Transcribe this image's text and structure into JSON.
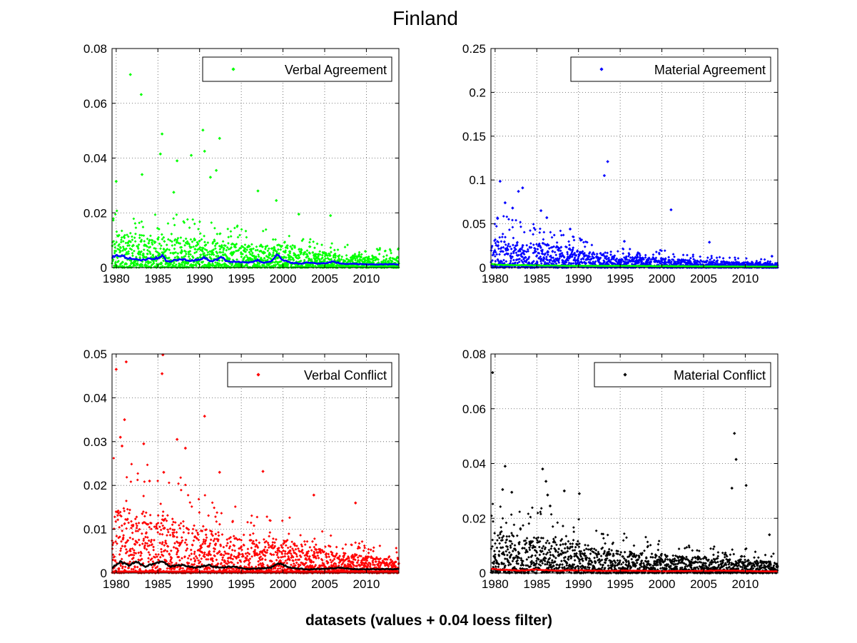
{
  "figure": {
    "title": "Finland",
    "xlabel": "datasets (values + 0.04 loess filter)"
  },
  "chart_data": [
    {
      "type": "scatter",
      "legend": "Verbal Agreement",
      "legend_placement": "top-right",
      "grid": true,
      "xlim": [
        1979.5,
        2013.9
      ],
      "ylim": [
        0,
        0.08
      ],
      "xticks": [
        1980,
        1985,
        1990,
        1995,
        2000,
        2005,
        2010
      ],
      "xtick_labels": [
        "1980",
        "1985",
        "1990",
        "1995",
        "2000",
        "2005",
        "2010"
      ],
      "yticks": [
        0,
        0.02,
        0.04,
        0.06,
        0.08
      ],
      "ytick_labels": [
        "0",
        "0.02",
        "0.04",
        "0.06",
        "0.08"
      ],
      "point_color": "#00ff00",
      "trend_color": "#0000ff",
      "baseline_color": null,
      "outliers": [
        [
          1981.7,
          0.0705
        ],
        [
          1983.0,
          0.0632
        ],
        [
          1985.5,
          0.0488
        ],
        [
          1985.3,
          0.0415
        ],
        [
          1987.3,
          0.039
        ],
        [
          1989.0,
          0.041
        ],
        [
          1990.4,
          0.0502
        ],
        [
          1990.6,
          0.0425
        ],
        [
          1991.3,
          0.033
        ],
        [
          1992.4,
          0.0472
        ],
        [
          1992.0,
          0.0355
        ],
        [
          1983.1,
          0.034
        ],
        [
          1997.0,
          0.028
        ],
        [
          1999.2,
          0.0245
        ],
        [
          1980.0,
          0.0315
        ],
        [
          1986.9,
          0.0275
        ],
        [
          2005.7,
          0.019
        ],
        [
          2001.9,
          0.0195
        ]
      ],
      "density": [
        [
          1979.5,
          0.014
        ],
        [
          1983,
          0.012
        ],
        [
          1986,
          0.011
        ],
        [
          1990,
          0.0105
        ],
        [
          1993,
          0.009
        ],
        [
          1997,
          0.008
        ],
        [
          2000,
          0.0085
        ],
        [
          2003,
          0.0065
        ],
        [
          2006,
          0.005
        ],
        [
          2010,
          0.0045
        ],
        [
          2013.9,
          0.004
        ]
      ],
      "trend": [
        [
          1979.5,
          0.0035
        ],
        [
          1980,
          0.0048
        ],
        [
          1981,
          0.004
        ],
        [
          1982,
          0.003
        ],
        [
          1983,
          0.0028
        ],
        [
          1984,
          0.0032
        ],
        [
          1985,
          0.0035
        ],
        [
          1985.5,
          0.0045
        ],
        [
          1986,
          0.0025
        ],
        [
          1986.5,
          0.002
        ],
        [
          1987,
          0.0028
        ],
        [
          1988,
          0.003
        ],
        [
          1989,
          0.0025
        ],
        [
          1990,
          0.003
        ],
        [
          1990.6,
          0.0038
        ],
        [
          1991.2,
          0.0022
        ],
        [
          1992,
          0.0028
        ],
        [
          1992.6,
          0.0038
        ],
        [
          1993.3,
          0.0022
        ],
        [
          1994,
          0.0022
        ],
        [
          1995,
          0.002
        ],
        [
          1996,
          0.0018
        ],
        [
          1997,
          0.0028
        ],
        [
          1997.6,
          0.0018
        ],
        [
          1998.5,
          0.0022
        ],
        [
          1999.3,
          0.0045
        ],
        [
          2000,
          0.0028
        ],
        [
          2001,
          0.0018
        ],
        [
          2002,
          0.0015
        ],
        [
          2003,
          0.0018
        ],
        [
          2004,
          0.0015
        ],
        [
          2005,
          0.0016
        ],
        [
          2006,
          0.0022
        ],
        [
          2007,
          0.0015
        ],
        [
          2008,
          0.0014
        ],
        [
          2009,
          0.0013
        ],
        [
          2011,
          0.0012
        ],
        [
          2013.9,
          0.0012
        ]
      ],
      "seed": 11
    },
    {
      "type": "scatter",
      "legend": "Material Agreement",
      "legend_placement": "top-right",
      "grid": true,
      "xlim": [
        1979.5,
        2013.9
      ],
      "ylim": [
        0,
        0.25
      ],
      "xticks": [
        1980,
        1985,
        1990,
        1995,
        2000,
        2005,
        2010
      ],
      "xtick_labels": [
        "1980",
        "1985",
        "1990",
        "1995",
        "2000",
        "2005",
        "2010"
      ],
      "yticks": [
        0,
        0.05,
        0.1,
        0.15,
        0.2,
        0.25
      ],
      "ytick_labels": [
        "0",
        "0.05",
        "0.1",
        "0.15",
        "0.2",
        "0.25"
      ],
      "point_color": "#0000ff",
      "trend_color": "#00ff00",
      "baseline_color": null,
      "outliers": [
        [
          1980.6,
          0.0985
        ],
        [
          1981.2,
          0.074
        ],
        [
          1982.1,
          0.068
        ],
        [
          1982.8,
          0.087
        ],
        [
          1983.3,
          0.091
        ],
        [
          1980.3,
          0.056
        ],
        [
          1985.5,
          0.065
        ],
        [
          1986.2,
          0.057
        ],
        [
          1989.0,
          0.044
        ],
        [
          1993.1,
          0.105
        ],
        [
          1993.5,
          0.121
        ],
        [
          2001.1,
          0.066
        ],
        [
          1995.5,
          0.03
        ],
        [
          2005.7,
          0.029
        ],
        [
          2013.2,
          0.013
        ]
      ],
      "density": [
        [
          1979.5,
          0.035
        ],
        [
          1983,
          0.03
        ],
        [
          1986,
          0.028
        ],
        [
          1990,
          0.02
        ],
        [
          1993,
          0.016
        ],
        [
          1997,
          0.012
        ],
        [
          2000,
          0.011
        ],
        [
          2003,
          0.009
        ],
        [
          2006,
          0.008
        ],
        [
          2010,
          0.006
        ],
        [
          2013.9,
          0.005
        ]
      ],
      "trend": [
        [
          1979.5,
          0.004
        ],
        [
          1981,
          0.003
        ],
        [
          1985,
          0.0025
        ],
        [
          1990,
          0.002
        ],
        [
          1995,
          0.002
        ],
        [
          2000,
          0.0018
        ],
        [
          2005,
          0.0015
        ],
        [
          2010,
          0.0012
        ],
        [
          2013.9,
          0.001
        ]
      ],
      "seed": 23
    },
    {
      "type": "scatter",
      "legend": "Verbal Conflict",
      "legend_placement": "top-right",
      "grid": true,
      "xlim": [
        1979.5,
        2013.9
      ],
      "ylim": [
        0,
        0.05
      ],
      "xticks": [
        1980,
        1985,
        1990,
        1995,
        2000,
        2005,
        2010
      ],
      "xtick_labels": [
        "1980",
        "1985",
        "1990",
        "1995",
        "2000",
        "2005",
        "2010"
      ],
      "yticks": [
        0,
        0.01,
        0.02,
        0.03,
        0.04,
        0.05
      ],
      "ytick_labels": [
        "0",
        "0.01",
        "0.02",
        "0.03",
        "0.04",
        "0.05"
      ],
      "point_color": "#ff0000",
      "trend_color": "#000000",
      "baseline_color": "#ff0000",
      "outliers": [
        [
          1980.0,
          0.0465
        ],
        [
          1980.5,
          0.031
        ],
        [
          1981.2,
          0.0482
        ],
        [
          1981.0,
          0.035
        ],
        [
          1980.7,
          0.029
        ],
        [
          1983.3,
          0.0295
        ],
        [
          1985.6,
          0.0498
        ],
        [
          1985.5,
          0.0455
        ],
        [
          1987.3,
          0.0305
        ],
        [
          1988.3,
          0.0285
        ],
        [
          1990.6,
          0.0358
        ],
        [
          1992.4,
          0.023
        ],
        [
          1997.6,
          0.0232
        ],
        [
          2003.7,
          0.0178
        ],
        [
          2008.7,
          0.016
        ],
        [
          1985.7,
          0.023
        ],
        [
          1984.0,
          0.021
        ]
      ],
      "density": [
        [
          1979.5,
          0.016
        ],
        [
          1983,
          0.014
        ],
        [
          1986,
          0.013
        ],
        [
          1990,
          0.011
        ],
        [
          1993,
          0.009
        ],
        [
          1997,
          0.0075
        ],
        [
          2000,
          0.0075
        ],
        [
          2003,
          0.006
        ],
        [
          2006,
          0.005
        ],
        [
          2010,
          0.004
        ],
        [
          2013.9,
          0.0035
        ]
      ],
      "trend": [
        [
          1979.5,
          0.0012
        ],
        [
          1980.5,
          0.0025
        ],
        [
          1981.5,
          0.0018
        ],
        [
          1982.5,
          0.0025
        ],
        [
          1983.5,
          0.0015
        ],
        [
          1984.5,
          0.0022
        ],
        [
          1985.5,
          0.0028
        ],
        [
          1986.5,
          0.0015
        ],
        [
          1988,
          0.0018
        ],
        [
          1989.5,
          0.0012
        ],
        [
          1991,
          0.0018
        ],
        [
          1992.5,
          0.0012
        ],
        [
          1994,
          0.0015
        ],
        [
          1995.5,
          0.0009
        ],
        [
          1997,
          0.001
        ],
        [
          1998.5,
          0.0012
        ],
        [
          1999.5,
          0.0022
        ],
        [
          2001,
          0.0012
        ],
        [
          2003,
          0.0008
        ],
        [
          2005,
          0.001
        ],
        [
          2007,
          0.0012
        ],
        [
          2009,
          0.0008
        ],
        [
          2011,
          0.0009
        ],
        [
          2013.9,
          0.0009
        ]
      ],
      "seed": 37
    },
    {
      "type": "scatter",
      "legend": "Material Conflict",
      "legend_placement": "top-right",
      "grid": true,
      "xlim": [
        1979.5,
        2013.9
      ],
      "ylim": [
        0,
        0.08
      ],
      "xticks": [
        1980,
        1985,
        1990,
        1995,
        2000,
        2005,
        2010
      ],
      "xtick_labels": [
        "1980",
        "1985",
        "1990",
        "1995",
        "2000",
        "2005",
        "2010"
      ],
      "yticks": [
        0,
        0.02,
        0.04,
        0.06,
        0.08
      ],
      "ytick_labels": [
        "0",
        "0.02",
        "0.04",
        "0.06",
        "0.08"
      ],
      "point_color": "#000000",
      "trend_color": "#ff0000",
      "baseline_color": null,
      "outliers": [
        [
          1979.7,
          0.0732
        ],
        [
          1981.2,
          0.039
        ],
        [
          1980.9,
          0.0305
        ],
        [
          1982.0,
          0.0295
        ],
        [
          1985.7,
          0.038
        ],
        [
          1986.1,
          0.0335
        ],
        [
          1986.3,
          0.0285
        ],
        [
          1986.6,
          0.0245
        ],
        [
          1988.3,
          0.03
        ],
        [
          1990.1,
          0.029
        ],
        [
          2008.4,
          0.031
        ],
        [
          2008.7,
          0.051
        ],
        [
          2008.9,
          0.0415
        ],
        [
          2010.1,
          0.032
        ],
        [
          2012.9,
          0.014
        ]
      ],
      "density": [
        [
          1979.5,
          0.016
        ],
        [
          1983,
          0.014
        ],
        [
          1986,
          0.013
        ],
        [
          1990,
          0.011
        ],
        [
          1993,
          0.009
        ],
        [
          1997,
          0.0075
        ],
        [
          2000,
          0.007
        ],
        [
          2003,
          0.006
        ],
        [
          2006,
          0.0055
        ],
        [
          2010,
          0.005
        ],
        [
          2013.9,
          0.004
        ]
      ],
      "trend": [
        [
          1979.5,
          0.0015
        ],
        [
          1981,
          0.0012
        ],
        [
          1983,
          0.0009
        ],
        [
          1985,
          0.0013
        ],
        [
          1987,
          0.0009
        ],
        [
          1990,
          0.001
        ],
        [
          1993,
          0.0008
        ],
        [
          1996,
          0.0009
        ],
        [
          2000,
          0.0007
        ],
        [
          2004,
          0.0008
        ],
        [
          2008,
          0.0009
        ],
        [
          2011,
          0.0007
        ],
        [
          2013.9,
          0.0006
        ]
      ],
      "seed": 53
    }
  ]
}
